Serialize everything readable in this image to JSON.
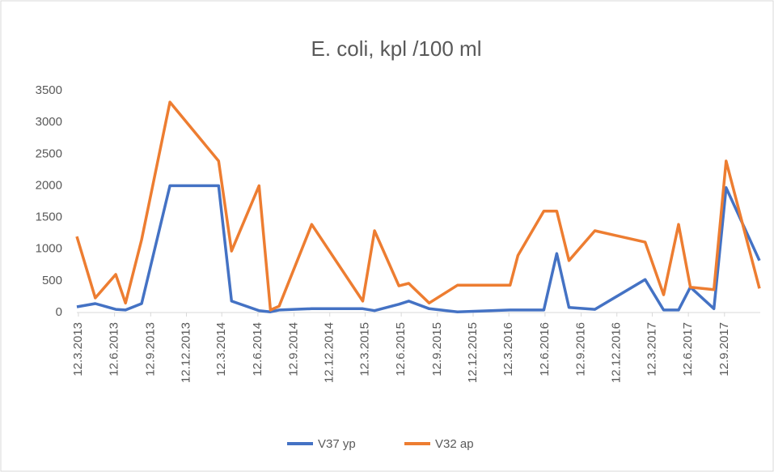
{
  "chart_data": {
    "type": "line",
    "title": "E. coli, kpl /100 ml",
    "x": [
      "2013-03-08",
      "2013-04-24",
      "2013-06-15",
      "2013-07-10",
      "2013-08-20",
      "2013-10-31",
      "2014-03-04",
      "2014-04-06",
      "2014-06-15",
      "2014-07-14",
      "2014-08-05",
      "2014-10-27",
      "2015-03-06",
      "2015-04-05",
      "2015-06-06",
      "2015-07-01",
      "2015-08-22",
      "2015-11-02",
      "2016-03-15",
      "2016-04-04",
      "2016-06-09",
      "2016-07-12",
      "2016-08-12",
      "2016-10-17",
      "2017-02-22",
      "2017-04-10",
      "2017-05-18",
      "2017-06-17",
      "2017-08-16",
      "2017-09-16",
      "2017-12-10"
    ],
    "series": [
      {
        "name": "V37 yp",
        "color": "#4472c4",
        "values": [
          90,
          140,
          50,
          40,
          140,
          2000,
          2000,
          180,
          30,
          10,
          40,
          60,
          60,
          30,
          130,
          180,
          60,
          10,
          40,
          40,
          40,
          930,
          80,
          50,
          520,
          40,
          40,
          400,
          60,
          1970,
          820
        ]
      },
      {
        "name": "V32 ap",
        "color": "#ed7d31",
        "values": [
          1200,
          230,
          600,
          150,
          1150,
          3320,
          2390,
          970,
          2000,
          40,
          100,
          1390,
          180,
          1290,
          420,
          460,
          150,
          430,
          430,
          900,
          1600,
          1600,
          820,
          1290,
          1110,
          280,
          1390,
          400,
          360,
          2390,
          380
        ]
      }
    ],
    "xlim": [
      "2013-03-08",
      "2017-12-12"
    ],
    "xticks": [
      {
        "value": "2013-03-12",
        "label": "12.3.2013"
      },
      {
        "value": "2013-06-12",
        "label": "12.6.2013"
      },
      {
        "value": "2013-09-12",
        "label": "12.9.2013"
      },
      {
        "value": "2013-12-12",
        "label": "12.12.2013"
      },
      {
        "value": "2014-03-12",
        "label": "12.3.2014"
      },
      {
        "value": "2014-06-12",
        "label": "12.6.2014"
      },
      {
        "value": "2014-09-12",
        "label": "12.9.2014"
      },
      {
        "value": "2014-12-12",
        "label": "12.12.2014"
      },
      {
        "value": "2015-03-12",
        "label": "12.3.2015"
      },
      {
        "value": "2015-06-12",
        "label": "12.6.2015"
      },
      {
        "value": "2015-09-12",
        "label": "12.9.2015"
      },
      {
        "value": "2015-12-12",
        "label": "12.12.2015"
      },
      {
        "value": "2016-03-12",
        "label": "12.3.2016"
      },
      {
        "value": "2016-06-12",
        "label": "12.6.2016"
      },
      {
        "value": "2016-09-12",
        "label": "12.9.2016"
      },
      {
        "value": "2016-12-12",
        "label": "12.12.2016"
      },
      {
        "value": "2017-03-12",
        "label": "12.3.2017"
      },
      {
        "value": "2017-06-12",
        "label": "12.6.2017"
      },
      {
        "value": "2017-09-12",
        "label": "12.9.2017"
      }
    ],
    "ylim": [
      0,
      3500
    ],
    "yticks": [
      0,
      500,
      1000,
      1500,
      2000,
      2500,
      3000,
      3500
    ],
    "grid": false,
    "legend": "bottom"
  }
}
